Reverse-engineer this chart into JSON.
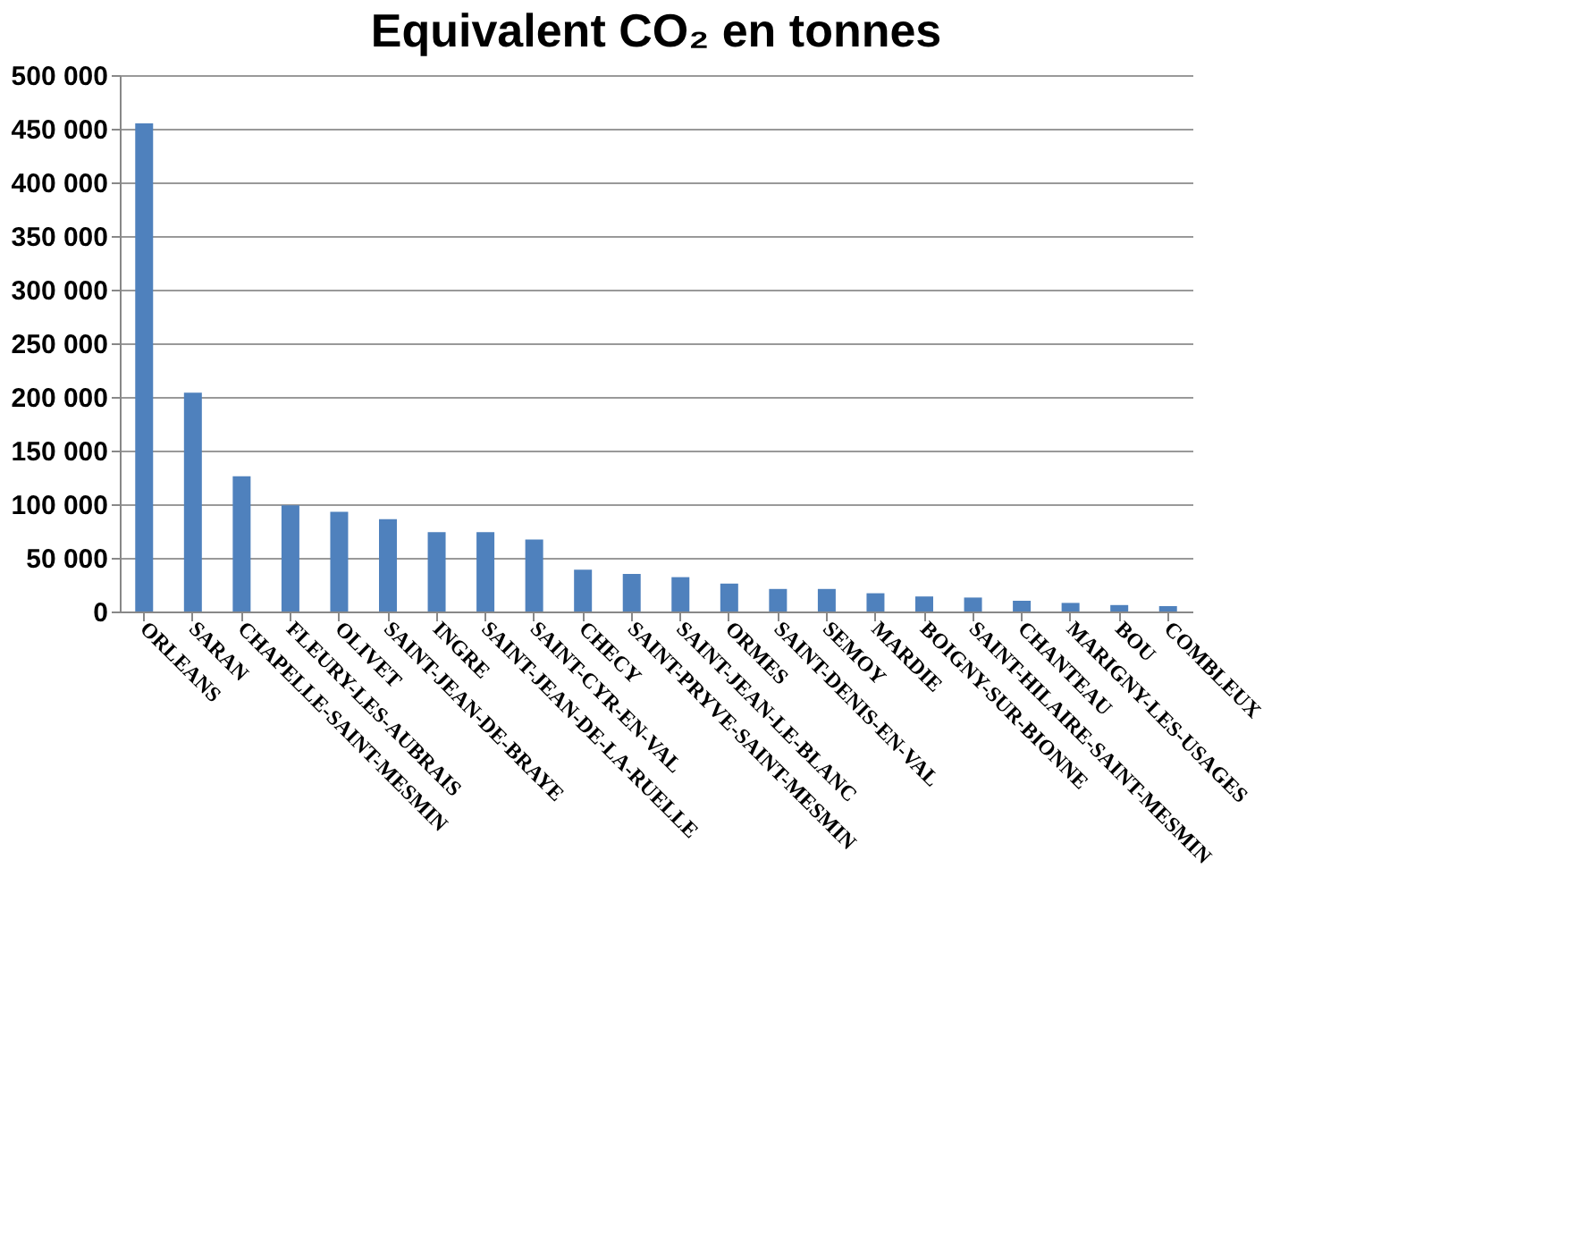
{
  "chart_data": {
    "type": "bar",
    "title": "Equivalent CO₂ en tonnes",
    "categories": [
      "ORLEANS",
      "SARAN",
      "CHAPELLE-SAINT-MESMIN",
      "FLEURY-LES-AUBRAIS",
      "OLIVET",
      "SAINT-JEAN-DE-BRAYE",
      "INGRE",
      "SAINT-JEAN-DE-LA-RUELLE",
      "SAINT-CYR-EN-VAL",
      "CHECY",
      "SAINT-PRYVE-SAINT-MESMIN",
      "SAINT-JEAN-LE-BLANC",
      "ORMES",
      "SAINT-DENIS-EN-VAL",
      "SEMOY",
      "MARDIE",
      "BOIGNY-SUR-BIONNE",
      "SAINT-HILAIRE-SAINT-MESMIN",
      "CHANTEAU",
      "MARIGNY-LES-USAGES",
      "BOU",
      "COMBLEUX"
    ],
    "values": [
      455000,
      204000,
      126000,
      99000,
      93000,
      86000,
      74000,
      74000,
      67000,
      39000,
      35000,
      32000,
      26000,
      21000,
      21000,
      17000,
      14000,
      13000,
      10000,
      8000,
      6000,
      5000
    ],
    "color": "#4f81bd",
    "ylim": [
      0,
      500000
    ],
    "yticks": [
      {
        "value": 0,
        "label": "0"
      },
      {
        "value": 50000,
        "label": "50 000"
      },
      {
        "value": 100000,
        "label": "100 000"
      },
      {
        "value": 150000,
        "label": "150 000"
      },
      {
        "value": 200000,
        "label": "200 000"
      },
      {
        "value": 250000,
        "label": "250 000"
      },
      {
        "value": 300000,
        "label": "300 000"
      },
      {
        "value": 350000,
        "label": "350 000"
      },
      {
        "value": 400000,
        "label": "400 000"
      },
      {
        "value": 450000,
        "label": "450 000"
      },
      {
        "value": 500000,
        "label": "500 000"
      }
    ],
    "grid": "y"
  }
}
